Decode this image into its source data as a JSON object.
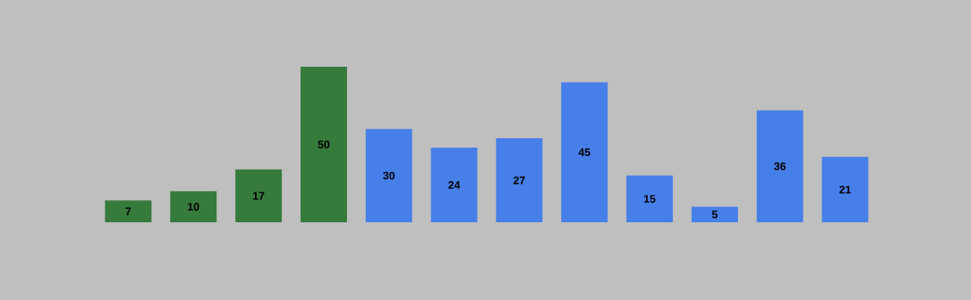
{
  "chart_data": {
    "type": "bar",
    "categories": [
      null,
      null,
      null,
      null,
      null,
      null,
      null,
      null,
      null,
      null,
      null,
      null
    ],
    "values": [
      7,
      10,
      17,
      50,
      30,
      24,
      27,
      45,
      15,
      5,
      36,
      21
    ],
    "colors": [
      "#367a3c",
      "#367a3c",
      "#367a3c",
      "#367a3c",
      "#477fe8",
      "#477fe8",
      "#477fe8",
      "#477fe8",
      "#477fe8",
      "#477fe8",
      "#477fe8",
      "#477fe8"
    ],
    "data_labels": true
  }
}
